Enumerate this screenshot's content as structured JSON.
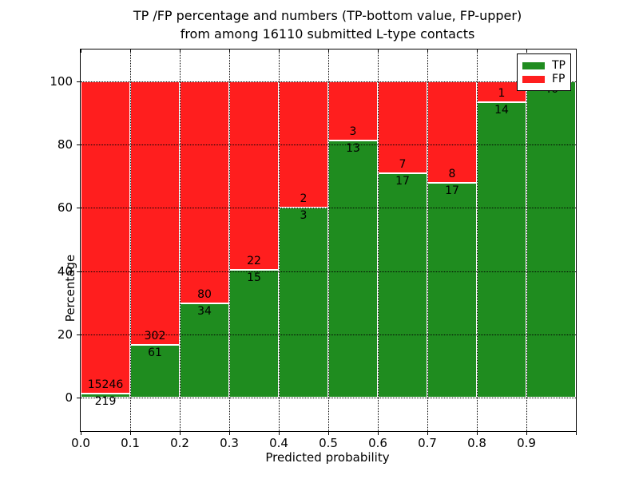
{
  "chart_data": {
    "type": "bar",
    "subtype": "stacked-percentage-histogram",
    "title": [
      "TP /FP percentage and numbers (TP-bottom value, FP-upper)",
      "from among 16110 submitted L-type contacts"
    ],
    "xlabel": "Predicted probability",
    "ylabel": "Percentage",
    "total_contacts": 16110,
    "bin_width": 0.1,
    "bins": [
      {
        "range": "0.0-0.1",
        "tp": 219,
        "fp": 15246,
        "tp_pct": 1.4
      },
      {
        "range": "0.1-0.2",
        "tp": 61,
        "fp": 302,
        "tp_pct": 16.8
      },
      {
        "range": "0.2-0.3",
        "tp": 34,
        "fp": 80,
        "tp_pct": 29.8
      },
      {
        "range": "0.3-0.4",
        "tp": 15,
        "fp": 22,
        "tp_pct": 40.5
      },
      {
        "range": "0.4-0.5",
        "tp": 3,
        "fp": 2,
        "tp_pct": 60.0
      },
      {
        "range": "0.5-0.6",
        "tp": 13,
        "fp": 3,
        "tp_pct": 81.2
      },
      {
        "range": "0.6-0.7",
        "tp": 17,
        "fp": 7,
        "tp_pct": 70.8
      },
      {
        "range": "0.7-0.8",
        "tp": 17,
        "fp": 8,
        "tp_pct": 68.0
      },
      {
        "range": "0.8-0.9",
        "tp": 14,
        "fp": 1,
        "tp_pct": 93.3
      },
      {
        "range": "0.9-1.0",
        "tp": 46,
        "fp": 0,
        "tp_pct": 100.0
      }
    ],
    "xticks": [
      "0.0",
      "0.1",
      "0.2",
      "0.3",
      "0.4",
      "0.5",
      "0.6",
      "0.7",
      "0.8",
      "0.9"
    ],
    "yticks": [
      0,
      20,
      40,
      60,
      80,
      100
    ],
    "ylim": [
      -10.5,
      110
    ],
    "grid": "dotted",
    "legend_position": "upper-right",
    "legend": [
      {
        "label": "TP",
        "color": "#1f8c1f"
      },
      {
        "label": "FP",
        "color": "#ff1e1e"
      }
    ],
    "colors": {
      "tp": "#1f8c1f",
      "fp": "#ff1e1e"
    }
  }
}
